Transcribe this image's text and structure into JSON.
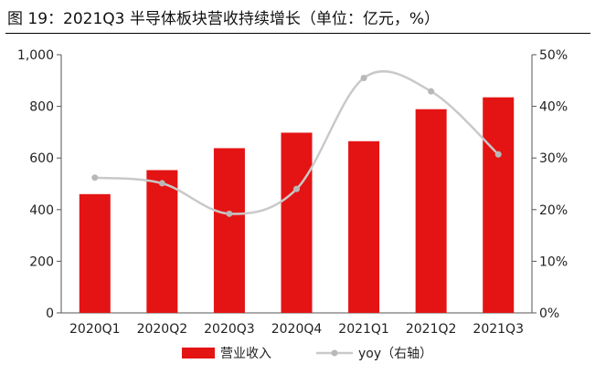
{
  "figure": {
    "title": "图 19：2021Q3 半导体板块营收持续增长（单位：亿元，%）"
  },
  "chart_data": {
    "type": "bar",
    "categories": [
      "2020Q1",
      "2020Q2",
      "2020Q3",
      "2020Q4",
      "2021Q1",
      "2021Q2",
      "2021Q3"
    ],
    "series": [
      {
        "name": "营业收入",
        "type": "bar",
        "axis": "left",
        "color": "#e41414",
        "values": [
          460,
          553,
          638,
          698,
          665,
          789,
          835
        ]
      },
      {
        "name": "yoy（右轴）",
        "type": "line",
        "axis": "right",
        "color": "#c9c9c9",
        "values": [
          26.2,
          25.1,
          19.2,
          24.0,
          45.5,
          42.9,
          30.7
        ]
      }
    ],
    "y_left": {
      "ticks": [
        "0",
        "200",
        "400",
        "600",
        "800",
        "1,000"
      ],
      "ylim": [
        0,
        1000
      ]
    },
    "y_right": {
      "ticks": [
        "0%",
        "10%",
        "20%",
        "30%",
        "40%",
        "50%"
      ],
      "ylim": [
        0,
        50
      ]
    },
    "grid": false,
    "legend_position": "bottom"
  }
}
